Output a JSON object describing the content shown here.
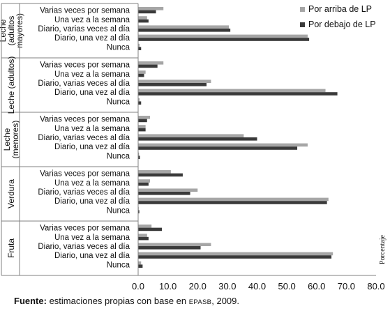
{
  "chart_data": {
    "type": "bar",
    "orientation": "horizontal",
    "xlim": [
      0,
      80
    ],
    "x_ticks": [
      "0.0",
      "10.0",
      "20.0",
      "30.0",
      "40.0",
      "50.0",
      "60.0",
      "70.0",
      "80.0"
    ],
    "x_tick_values": [
      0,
      10,
      20,
      30,
      40,
      50,
      60,
      70,
      80
    ],
    "xlabel": "Porcentaje",
    "legend_position": "top-right",
    "colors": {
      "above": "#a6a6a6",
      "below": "#3a3a3a"
    },
    "series": [
      {
        "key": "above",
        "name": "Por arriba de LP"
      },
      {
        "key": "below",
        "name": "Por debajo de LP"
      }
    ],
    "groups": [
      {
        "label": [
          "Leche",
          "(adultos",
          "mayores)"
        ],
        "items": [
          {
            "category": "Varias veces por semana",
            "above": 8.5,
            "below": 6.0
          },
          {
            "category": "Una vez a la semana",
            "above": 3.0,
            "below": 3.5
          },
          {
            "category": "Diario, varias veces al día",
            "above": 30.5,
            "below": 31.0
          },
          {
            "category": "Diario, una vez al día",
            "above": 57.0,
            "below": 57.5
          },
          {
            "category": "Nunca",
            "above": 0.5,
            "below": 1.0
          }
        ]
      },
      {
        "label": [
          "Leche (adultos)"
        ],
        "items": [
          {
            "category": "Varias veces por semana",
            "above": 8.5,
            "below": 6.5
          },
          {
            "category": "Una vez a la semana",
            "above": 2.5,
            "below": 2.0
          },
          {
            "category": "Diario, varias veces al día",
            "above": 24.5,
            "below": 23.0
          },
          {
            "category": "Diario, una vez al día",
            "above": 63.0,
            "below": 67.0
          },
          {
            "category": "Nunca",
            "above": 0.5,
            "below": 1.0
          }
        ]
      },
      {
        "label": [
          "Leche",
          "(menores)"
        ],
        "items": [
          {
            "category": "Varias veces por semana",
            "above": 4.0,
            "below": 3.0
          },
          {
            "category": "Una vez a la semana",
            "above": 2.5,
            "below": 2.5
          },
          {
            "category": "Diario, varias veces al día",
            "above": 35.5,
            "below": 40.0
          },
          {
            "category": "Diario, una vez al día",
            "above": 57.0,
            "below": 53.5
          },
          {
            "category": "Nunca",
            "above": 0.3,
            "below": 0.6
          }
        ]
      },
      {
        "label": [
          "Verdura"
        ],
        "items": [
          {
            "category": "Varias veces por semana",
            "above": 11.0,
            "below": 15.0
          },
          {
            "category": "Una vez a la semana",
            "above": 4.0,
            "below": 3.5
          },
          {
            "category": "Diario, varias veces al día",
            "above": 20.0,
            "below": 17.5
          },
          {
            "category": "Diario, una vez al día",
            "above": 64.0,
            "below": 63.5
          },
          {
            "category": "Nunca",
            "above": 0.2,
            "below": 0.4
          }
        ]
      },
      {
        "label": [
          "Fruta"
        ],
        "items": [
          {
            "category": "Varias veces por semana",
            "above": 4.5,
            "below": 8.0
          },
          {
            "category": "Una vez a la semana",
            "above": 3.0,
            "below": 3.5
          },
          {
            "category": "Diario, varias veces al día",
            "above": 24.5,
            "below": 21.0
          },
          {
            "category": "Diario, una vez al día",
            "above": 65.5,
            "below": 65.0
          },
          {
            "category": "Nunca",
            "above": 1.0,
            "below": 1.5
          }
        ]
      }
    ]
  },
  "source": {
    "prefix": "Fuente:",
    "text_before": " estimaciones propias con base en ",
    "abbrev": "EPASB",
    "text_after": ", 2009."
  }
}
